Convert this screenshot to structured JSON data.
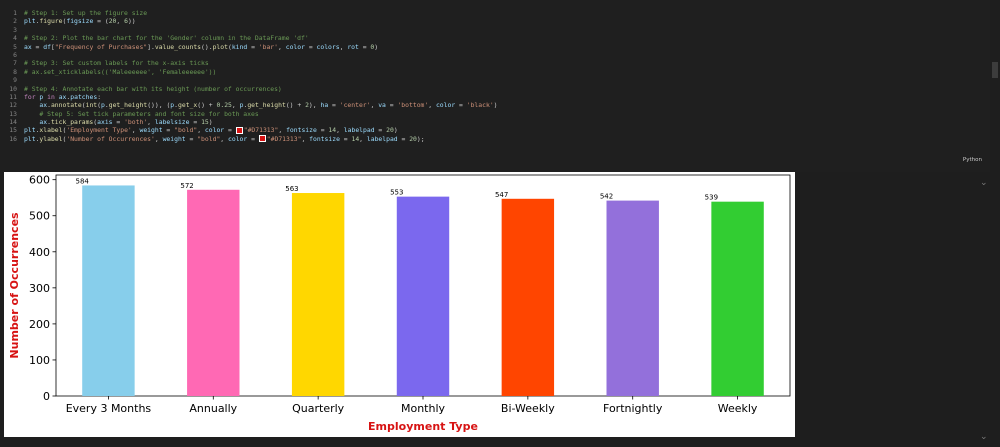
{
  "editor": {
    "lines": [
      {
        "n": "1",
        "parts": [
          {
            "c": "c-comment",
            "t": "# Step 1: Set up the figure size"
          }
        ]
      },
      {
        "n": "2",
        "parts": [
          {
            "c": "c-var",
            "t": "plt"
          },
          {
            "t": "."
          },
          {
            "c": "c-fn",
            "t": "figure"
          },
          {
            "t": "("
          },
          {
            "c": "c-var",
            "t": "figsize"
          },
          {
            "t": " = ("
          },
          {
            "c": "c-num",
            "t": "20"
          },
          {
            "t": ", "
          },
          {
            "c": "c-num",
            "t": "6"
          },
          {
            "t": "))"
          }
        ]
      },
      {
        "n": "3",
        "parts": []
      },
      {
        "n": "4",
        "parts": [
          {
            "c": "c-comment",
            "t": "# Step 2: Plot the bar chart for the 'Gender' column in the DataFrame 'df'"
          }
        ]
      },
      {
        "n": "5",
        "parts": [
          {
            "c": "c-var",
            "t": "ax"
          },
          {
            "t": " = "
          },
          {
            "c": "c-var",
            "t": "df"
          },
          {
            "t": "["
          },
          {
            "c": "c-str",
            "t": "\"Frequency of Purchases\""
          },
          {
            "t": "]."
          },
          {
            "c": "c-fn",
            "t": "value_counts"
          },
          {
            "t": "()."
          },
          {
            "c": "c-fn",
            "t": "plot"
          },
          {
            "t": "("
          },
          {
            "c": "c-var",
            "t": "kind"
          },
          {
            "t": " = "
          },
          {
            "c": "c-str",
            "t": "'bar'"
          },
          {
            "t": ", "
          },
          {
            "c": "c-var",
            "t": "color"
          },
          {
            "t": " = "
          },
          {
            "c": "c-var",
            "t": "colors"
          },
          {
            "t": ", "
          },
          {
            "c": "c-var",
            "t": "rot"
          },
          {
            "t": " = "
          },
          {
            "c": "c-num",
            "t": "0"
          },
          {
            "t": ")"
          }
        ]
      },
      {
        "n": "6",
        "parts": []
      },
      {
        "n": "7",
        "parts": [
          {
            "c": "c-comment",
            "t": "# Step 3: Set custom labels for the x-axis ticks"
          }
        ]
      },
      {
        "n": "8",
        "parts": [
          {
            "c": "c-comment",
            "t": "# ax.set_xticklabels(('Maleeeeee', 'Femaleeeeee'))"
          }
        ]
      },
      {
        "n": "9",
        "parts": []
      },
      {
        "n": "10",
        "parts": [
          {
            "c": "c-comment",
            "t": "# Step 4: Annotate each bar with its height (number of occurrences)"
          }
        ]
      },
      {
        "n": "11",
        "parts": [
          {
            "c": "c-kw",
            "t": "for"
          },
          {
            "t": " "
          },
          {
            "c": "c-var",
            "t": "p"
          },
          {
            "t": " "
          },
          {
            "c": "c-kw",
            "t": "in"
          },
          {
            "t": " "
          },
          {
            "c": "c-var",
            "t": "ax"
          },
          {
            "t": "."
          },
          {
            "c": "c-var",
            "t": "patches"
          },
          {
            "t": ":"
          }
        ]
      },
      {
        "n": "12",
        "parts": [
          {
            "t": "    "
          },
          {
            "c": "c-var",
            "t": "ax"
          },
          {
            "t": "."
          },
          {
            "c": "c-fn",
            "t": "annotate"
          },
          {
            "t": "("
          },
          {
            "c": "c-fn",
            "t": "int"
          },
          {
            "t": "("
          },
          {
            "c": "c-var",
            "t": "p"
          },
          {
            "t": "."
          },
          {
            "c": "c-fn",
            "t": "get_height"
          },
          {
            "t": "()), ("
          },
          {
            "c": "c-var",
            "t": "p"
          },
          {
            "t": "."
          },
          {
            "c": "c-fn",
            "t": "get_x"
          },
          {
            "t": "() + "
          },
          {
            "c": "c-num",
            "t": "0.25"
          },
          {
            "t": ", "
          },
          {
            "c": "c-var",
            "t": "p"
          },
          {
            "t": "."
          },
          {
            "c": "c-fn",
            "t": "get_height"
          },
          {
            "t": "() + "
          },
          {
            "c": "c-num",
            "t": "2"
          },
          {
            "t": "), "
          },
          {
            "c": "c-var",
            "t": "ha"
          },
          {
            "t": " = "
          },
          {
            "c": "c-str",
            "t": "'center'"
          },
          {
            "t": ", "
          },
          {
            "c": "c-var",
            "t": "va"
          },
          {
            "t": " = "
          },
          {
            "c": "c-str",
            "t": "'bottom'"
          },
          {
            "t": ", "
          },
          {
            "c": "c-var",
            "t": "color"
          },
          {
            "t": " = "
          },
          {
            "c": "c-str",
            "t": "'black'"
          },
          {
            "t": ")"
          }
        ]
      },
      {
        "n": "13",
        "parts": [
          {
            "t": "    "
          },
          {
            "c": "c-comment",
            "t": "# Step 5: Set tick parameters and font size for both axes"
          }
        ]
      },
      {
        "n": "14",
        "parts": [
          {
            "t": "    "
          },
          {
            "c": "c-var",
            "t": "ax"
          },
          {
            "t": "."
          },
          {
            "c": "c-fn",
            "t": "tick_params"
          },
          {
            "t": "("
          },
          {
            "c": "c-var",
            "t": "axis"
          },
          {
            "t": " = "
          },
          {
            "c": "c-str",
            "t": "'both'"
          },
          {
            "t": ", "
          },
          {
            "c": "c-var",
            "t": "labelsize"
          },
          {
            "t": " = "
          },
          {
            "c": "c-num",
            "t": "15"
          },
          {
            "t": ")"
          }
        ]
      },
      {
        "n": "15",
        "parts": [
          {
            "c": "c-var",
            "t": "plt"
          },
          {
            "t": "."
          },
          {
            "c": "c-fn",
            "t": "xlabel"
          },
          {
            "t": "("
          },
          {
            "c": "c-str",
            "t": "'Employment Type'"
          },
          {
            "t": ", "
          },
          {
            "c": "c-var",
            "t": "weight"
          },
          {
            "t": " = "
          },
          {
            "c": "c-str",
            "t": "\"bold\""
          },
          {
            "t": ", "
          },
          {
            "c": "c-var",
            "t": "color"
          },
          {
            "t": " = "
          },
          {
            "c": "swatch",
            "t": ""
          },
          {
            "c": "c-str",
            "t": "\"#D71313\""
          },
          {
            "t": ", "
          },
          {
            "c": "c-var",
            "t": "fontsize"
          },
          {
            "t": " = "
          },
          {
            "c": "c-num",
            "t": "14"
          },
          {
            "t": ", "
          },
          {
            "c": "c-var",
            "t": "labelpad"
          },
          {
            "t": " = "
          },
          {
            "c": "c-num",
            "t": "20"
          },
          {
            "t": ")"
          }
        ]
      },
      {
        "n": "16",
        "parts": [
          {
            "c": "c-var",
            "t": "plt"
          },
          {
            "t": "."
          },
          {
            "c": "c-fn",
            "t": "ylabel"
          },
          {
            "t": "("
          },
          {
            "c": "c-str",
            "t": "'Number of Occurrences'"
          },
          {
            "t": ", "
          },
          {
            "c": "c-var",
            "t": "weight"
          },
          {
            "t": " = "
          },
          {
            "c": "c-str",
            "t": "\"bold\""
          },
          {
            "t": ", "
          },
          {
            "c": "c-var",
            "t": "color"
          },
          {
            "t": " = "
          },
          {
            "c": "swatch",
            "t": ""
          },
          {
            "c": "c-str",
            "t": "\"#D71313\""
          },
          {
            "t": ", "
          },
          {
            "c": "c-var",
            "t": "fontsize"
          },
          {
            "t": " = "
          },
          {
            "c": "c-num",
            "t": "14"
          },
          {
            "t": ", "
          },
          {
            "c": "c-var",
            "t": "labelpad"
          },
          {
            "t": " = "
          },
          {
            "c": "c-num",
            "t": "20"
          },
          {
            "t": ");"
          }
        ]
      }
    ],
    "language_label": "Python"
  },
  "icons": {
    "collapse_output": "chevron-down-icon",
    "collapse_bottom": "chevron-down-icon"
  },
  "chart_data": {
    "type": "bar",
    "categories": [
      "Every 3 Months",
      "Annually",
      "Quarterly",
      "Monthly",
      "Bi-Weekly",
      "Fortnightly",
      "Weekly"
    ],
    "values": [
      584,
      572,
      563,
      553,
      547,
      542,
      539
    ],
    "value_labels": [
      "584",
      "572",
      "563",
      "553",
      "547",
      "542",
      "539"
    ],
    "colors": [
      "#87ceeb",
      "#ff69b4",
      "#ffd700",
      "#7b68ee",
      "#ff4500",
      "#9370db",
      "#32cd32"
    ],
    "xlabel": "Employment Type",
    "ylabel": "Number of Occurrences",
    "label_color": "#D71313",
    "ylim": [
      0,
      613
    ],
    "yticks": [
      0,
      100,
      200,
      300,
      400,
      500,
      600
    ],
    "grid": false
  }
}
